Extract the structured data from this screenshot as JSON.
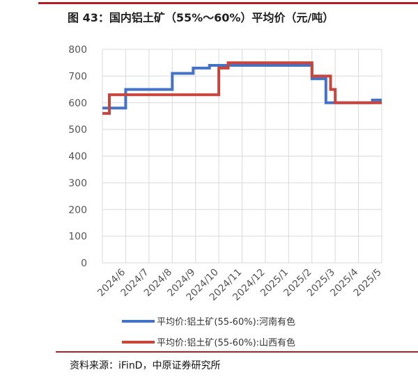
{
  "figure": {
    "title": "图 43：国内铝土矿（55%～60%）平均价（元/吨）",
    "source": "资料来源：iFinD，中原证券研究所"
  },
  "chart_data": {
    "type": "line",
    "title": "",
    "xlabel": "",
    "ylabel": "",
    "ylim": [
      0,
      800
    ],
    "yticks": [
      0,
      100,
      200,
      300,
      400,
      500,
      600,
      700,
      800
    ],
    "categories": [
      "2024/6",
      "2024/7",
      "2024/8",
      "2024/9",
      "2024/10",
      "2024/11",
      "2024/12",
      "2025/1",
      "2025/2",
      "2025/3",
      "2025/4",
      "2025/5"
    ],
    "grid": true,
    "legend_position": "bottom",
    "series": [
      {
        "name": "平均价:铝土矿(55-60%):河南有色",
        "color": "#4472c4",
        "step": true,
        "x": [
          0,
          1,
          1,
          3,
          3,
          3.9,
          3.9,
          4.6,
          4.6,
          9,
          9,
          9.6,
          9.6,
          11.6,
          11.6,
          12
        ],
        "y": [
          580,
          580,
          650,
          650,
          710,
          710,
          730,
          730,
          740,
          740,
          690,
          690,
          600,
          600,
          610,
          610
        ]
      },
      {
        "name": "平均价:铝土矿(55-60%):山西有色",
        "color": "#c8453b",
        "step": true,
        "x": [
          0,
          0.3,
          0.3,
          5,
          5,
          5.4,
          5.4,
          9,
          9,
          9.8,
          9.8,
          10,
          10,
          12
        ],
        "y": [
          560,
          560,
          630,
          630,
          730,
          730,
          750,
          750,
          700,
          700,
          650,
          650,
          600,
          600
        ]
      }
    ]
  }
}
